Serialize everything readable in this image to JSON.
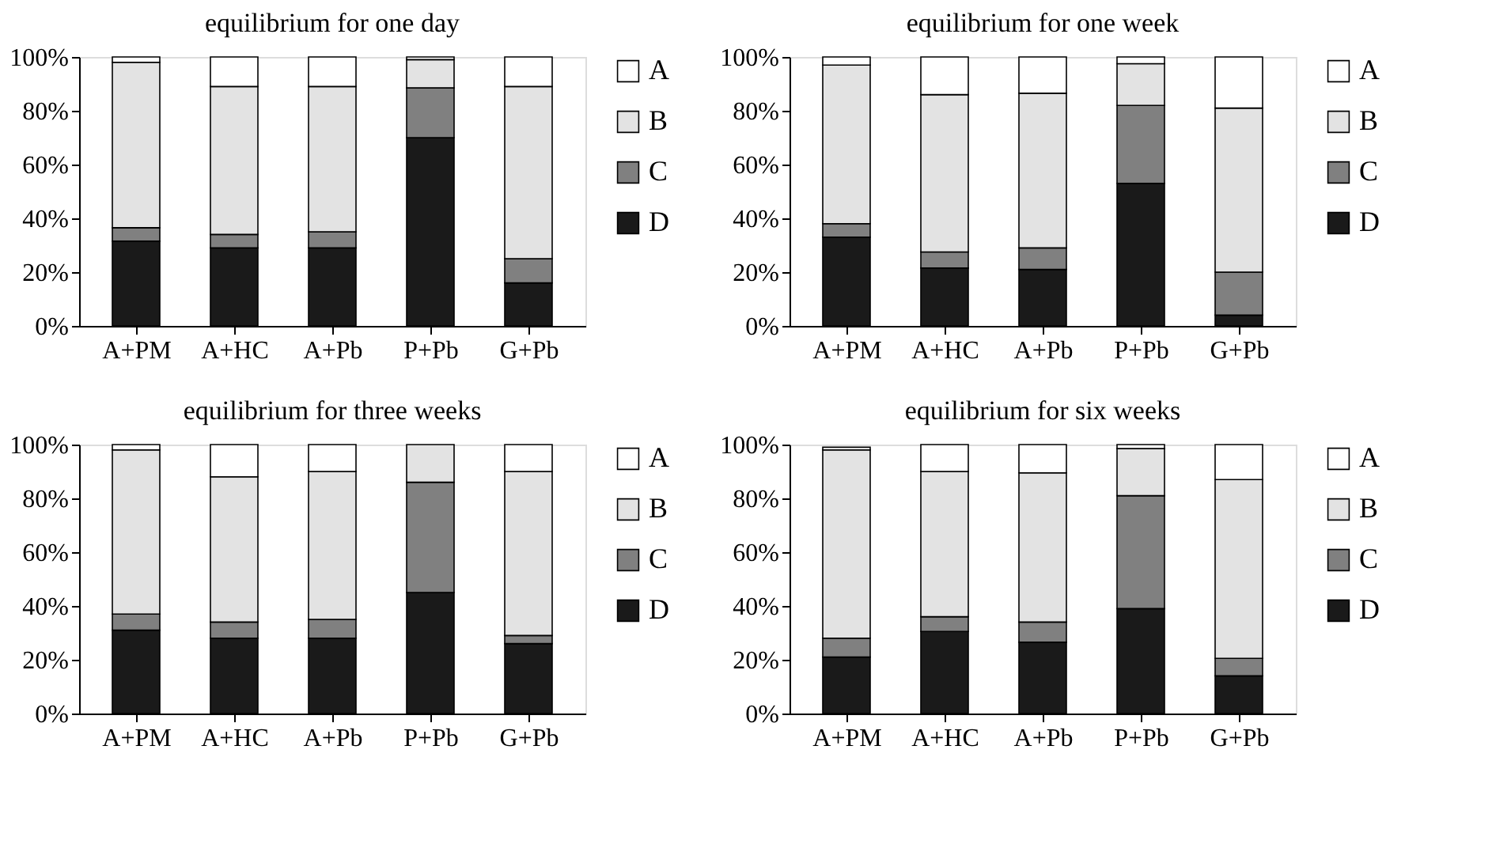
{
  "chart_data": [
    {
      "type": "bar",
      "stacked": true,
      "title": "equilibrium for one day",
      "categories": [
        "A+PM",
        "A+HC",
        "A+Pb",
        "P+Pb",
        "G+Pb"
      ],
      "ylim": [
        0,
        100
      ],
      "yticks": [
        {
          "value": 0,
          "label": "0%"
        },
        {
          "value": 20,
          "label": "20%"
        },
        {
          "value": 40,
          "label": "40%"
        },
        {
          "value": 60,
          "label": "60%"
        },
        {
          "value": 80,
          "label": "80%"
        },
        {
          "value": 100,
          "label": "100%"
        }
      ],
      "grid": false,
      "legend": "right",
      "series": [
        {
          "name": "D",
          "color": "#1a1a1a",
          "values": [
            31.5,
            29,
            29,
            70,
            16
          ]
        },
        {
          "name": "C",
          "color": "#808080",
          "values": [
            5,
            5,
            6,
            18.5,
            9
          ]
        },
        {
          "name": "B",
          "color": "#e3e3e3",
          "values": [
            61.5,
            55,
            54,
            10.5,
            64
          ]
        },
        {
          "name": "A",
          "color": "#ffffff",
          "values": [
            2,
            11,
            11,
            1,
            11
          ]
        }
      ]
    },
    {
      "type": "bar",
      "stacked": true,
      "title": "equilibrium for one week",
      "categories": [
        "A+PM",
        "A+HC",
        "A+Pb",
        "P+Pb",
        "G+Pb"
      ],
      "ylim": [
        0,
        100
      ],
      "yticks": [
        {
          "value": 0,
          "label": "0%"
        },
        {
          "value": 20,
          "label": "20%"
        },
        {
          "value": 40,
          "label": "40%"
        },
        {
          "value": 60,
          "label": "60%"
        },
        {
          "value": 80,
          "label": "80%"
        },
        {
          "value": 100,
          "label": "100%"
        }
      ],
      "grid": false,
      "legend": "right",
      "series": [
        {
          "name": "D",
          "color": "#1a1a1a",
          "values": [
            33,
            21.5,
            21,
            53,
            4
          ]
        },
        {
          "name": "C",
          "color": "#808080",
          "values": [
            5,
            6,
            8,
            29,
            16
          ]
        },
        {
          "name": "B",
          "color": "#e3e3e3",
          "values": [
            59,
            58.5,
            57.5,
            15.5,
            61
          ]
        },
        {
          "name": "A",
          "color": "#ffffff",
          "values": [
            3,
            14,
            13.5,
            2.5,
            19
          ]
        }
      ]
    },
    {
      "type": "bar",
      "stacked": true,
      "title": "equilibrium for three weeks",
      "categories": [
        "A+PM",
        "A+HC",
        "A+Pb",
        "P+Pb",
        "G+Pb"
      ],
      "ylim": [
        0,
        100
      ],
      "yticks": [
        {
          "value": 0,
          "label": "0%"
        },
        {
          "value": 20,
          "label": "20%"
        },
        {
          "value": 40,
          "label": "40%"
        },
        {
          "value": 60,
          "label": "60%"
        },
        {
          "value": 80,
          "label": "80%"
        },
        {
          "value": 100,
          "label": "100%"
        }
      ],
      "grid": false,
      "legend": "right",
      "series": [
        {
          "name": "D",
          "color": "#1a1a1a",
          "values": [
            31,
            28,
            28,
            45,
            26
          ]
        },
        {
          "name": "C",
          "color": "#808080",
          "values": [
            6,
            6,
            7,
            41,
            3
          ]
        },
        {
          "name": "B",
          "color": "#e3e3e3",
          "values": [
            61,
            54,
            55,
            14,
            61
          ]
        },
        {
          "name": "A",
          "color": "#ffffff",
          "values": [
            2,
            12,
            10,
            null,
            10
          ]
        }
      ]
    },
    {
      "type": "bar",
      "stacked": true,
      "title": "equilibrium for six weeks",
      "categories": [
        "A+PM",
        "A+HC",
        "A+Pb",
        "P+Pb",
        "G+Pb"
      ],
      "ylim": [
        0,
        100
      ],
      "yticks": [
        {
          "value": 0,
          "label": "0%"
        },
        {
          "value": 20,
          "label": "20%"
        },
        {
          "value": 40,
          "label": "40%"
        },
        {
          "value": 60,
          "label": "60%"
        },
        {
          "value": 80,
          "label": "80%"
        },
        {
          "value": 100,
          "label": "100%"
        }
      ],
      "grid": false,
      "legend": "right",
      "series": [
        {
          "name": "D",
          "color": "#1a1a1a",
          "values": [
            21,
            30.5,
            26.5,
            39,
            14
          ]
        },
        {
          "name": "C",
          "color": "#808080",
          "values": [
            7,
            5.5,
            7.5,
            42,
            6.5
          ]
        },
        {
          "name": "B",
          "color": "#e3e3e3",
          "values": [
            70,
            54,
            55.5,
            17.5,
            66.5
          ]
        },
        {
          "name": "A",
          "color": "#ffffff",
          "values": [
            1,
            10,
            10.5,
            1.5,
            13
          ]
        }
      ]
    }
  ]
}
